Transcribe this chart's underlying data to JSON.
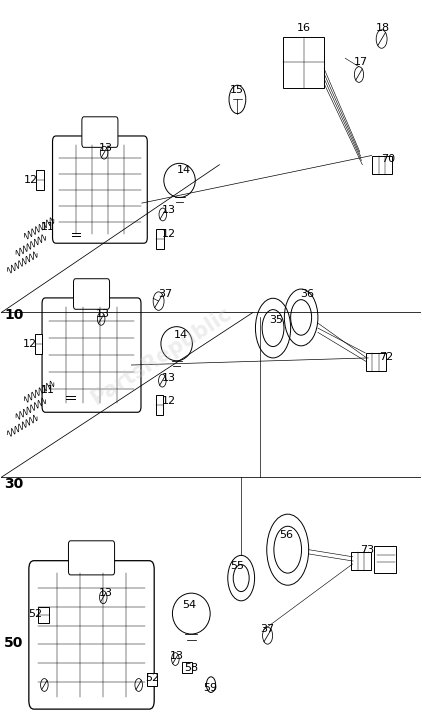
{
  "bg_color": "#ffffff",
  "line_color": "#000000",
  "label_color": "#000000",
  "watermark_color": "#c8c8c8",
  "watermark_text": "PartsRepublic",
  "fig_width": 4.22,
  "fig_height": 7.13,
  "dpi": 100
}
